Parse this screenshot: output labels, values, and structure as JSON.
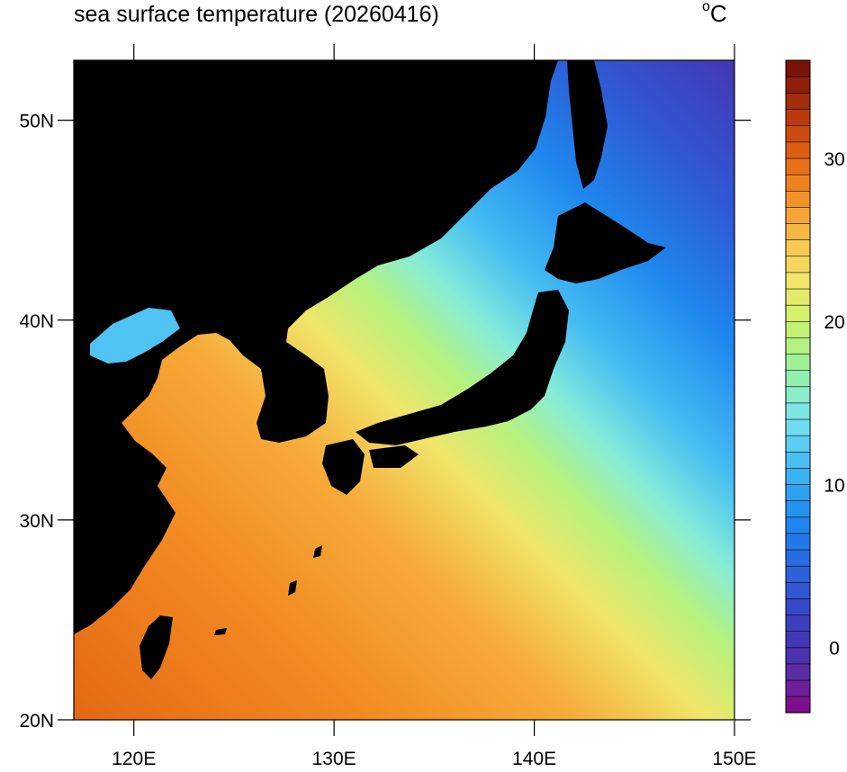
{
  "title": "sea surface temperature (20260416)",
  "units": "C",
  "units_degree": "o",
  "extent": {
    "lon_min": 117,
    "lon_max": 150,
    "lat_min": 20,
    "lat_max": 53
  },
  "lat_ticks": [
    {
      "value": 20,
      "label": "20N"
    },
    {
      "value": 30,
      "label": "30N"
    },
    {
      "value": 40,
      "label": "40N"
    },
    {
      "value": 50,
      "label": "50N"
    }
  ],
  "lon_ticks": [
    {
      "value": 120,
      "label": "120E"
    },
    {
      "value": 130,
      "label": "130E"
    },
    {
      "value": 140,
      "label": "140E"
    },
    {
      "value": 150,
      "label": "150E"
    }
  ],
  "colorbar": {
    "min": -4,
    "max": 36,
    "step": 1,
    "labels": [
      {
        "value": 0,
        "text": "0"
      },
      {
        "value": 10,
        "text": "10"
      },
      {
        "value": 20,
        "text": "20"
      },
      {
        "value": 30,
        "text": "30"
      }
    ]
  },
  "colors": {
    "land": "#000000",
    "frame": "#000000",
    "palette": [
      "#7e0f8c",
      "#5b2ca3",
      "#4536b3",
      "#3a43c4",
      "#2f5ad5",
      "#2570e3",
      "#1e88ee",
      "#2da2f0",
      "#46bdf2",
      "#6ad8f4",
      "#86ecd8",
      "#95f0a4",
      "#b6f27d",
      "#d9f06a",
      "#f1e56a",
      "#f8cb55",
      "#f6ab3a",
      "#f28a22",
      "#e46815",
      "#c8460f",
      "#a02a0a",
      "#7a1205"
    ]
  }
}
